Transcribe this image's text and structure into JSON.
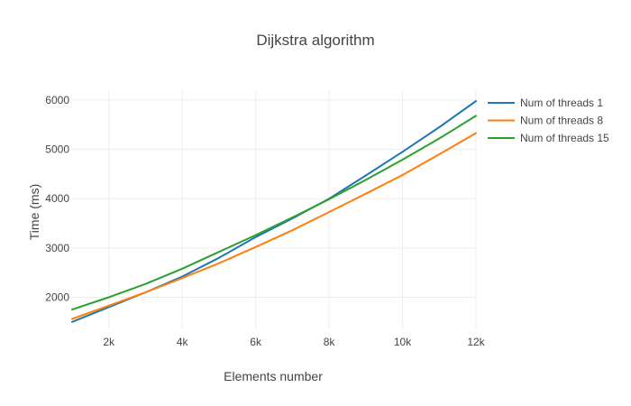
{
  "chart_data": {
    "type": "line",
    "title": "Dijkstra algorithm",
    "xlabel": "Elements number",
    "ylabel": "Time (ms)",
    "xlim": [
      1000,
      12000
    ],
    "ylim": [
      1350,
      6200
    ],
    "xticks": [
      2000,
      4000,
      6000,
      8000,
      10000,
      12000
    ],
    "xtick_labels": [
      "2k",
      "4k",
      "6k",
      "8k",
      "10k",
      "12k"
    ],
    "yticks": [
      2000,
      3000,
      4000,
      5000,
      6000
    ],
    "ytick_labels": [
      "2000",
      "3000",
      "4000",
      "5000",
      "6000"
    ],
    "grid": true,
    "legend_position": "top-right",
    "x": [
      1000,
      2000,
      3000,
      4000,
      5000,
      6000,
      7000,
      8000,
      9000,
      10000,
      11000,
      12000
    ],
    "series": [
      {
        "name": "Num of threads 1",
        "color": "#1f77b4",
        "values": [
          1500,
          1800,
          2100,
          2420,
          2800,
          3220,
          3600,
          4000,
          4470,
          4950,
          5450,
          5980
        ]
      },
      {
        "name": "Num of threads 8",
        "color": "#ff7f0e",
        "values": [
          1560,
          1830,
          2100,
          2390,
          2690,
          3020,
          3360,
          3730,
          4100,
          4480,
          4900,
          5330
        ]
      },
      {
        "name": "Num of threads 15",
        "color": "#2ca02c",
        "values": [
          1750,
          2000,
          2270,
          2580,
          2920,
          3260,
          3620,
          3990,
          4380,
          4790,
          5220,
          5680
        ]
      }
    ]
  }
}
